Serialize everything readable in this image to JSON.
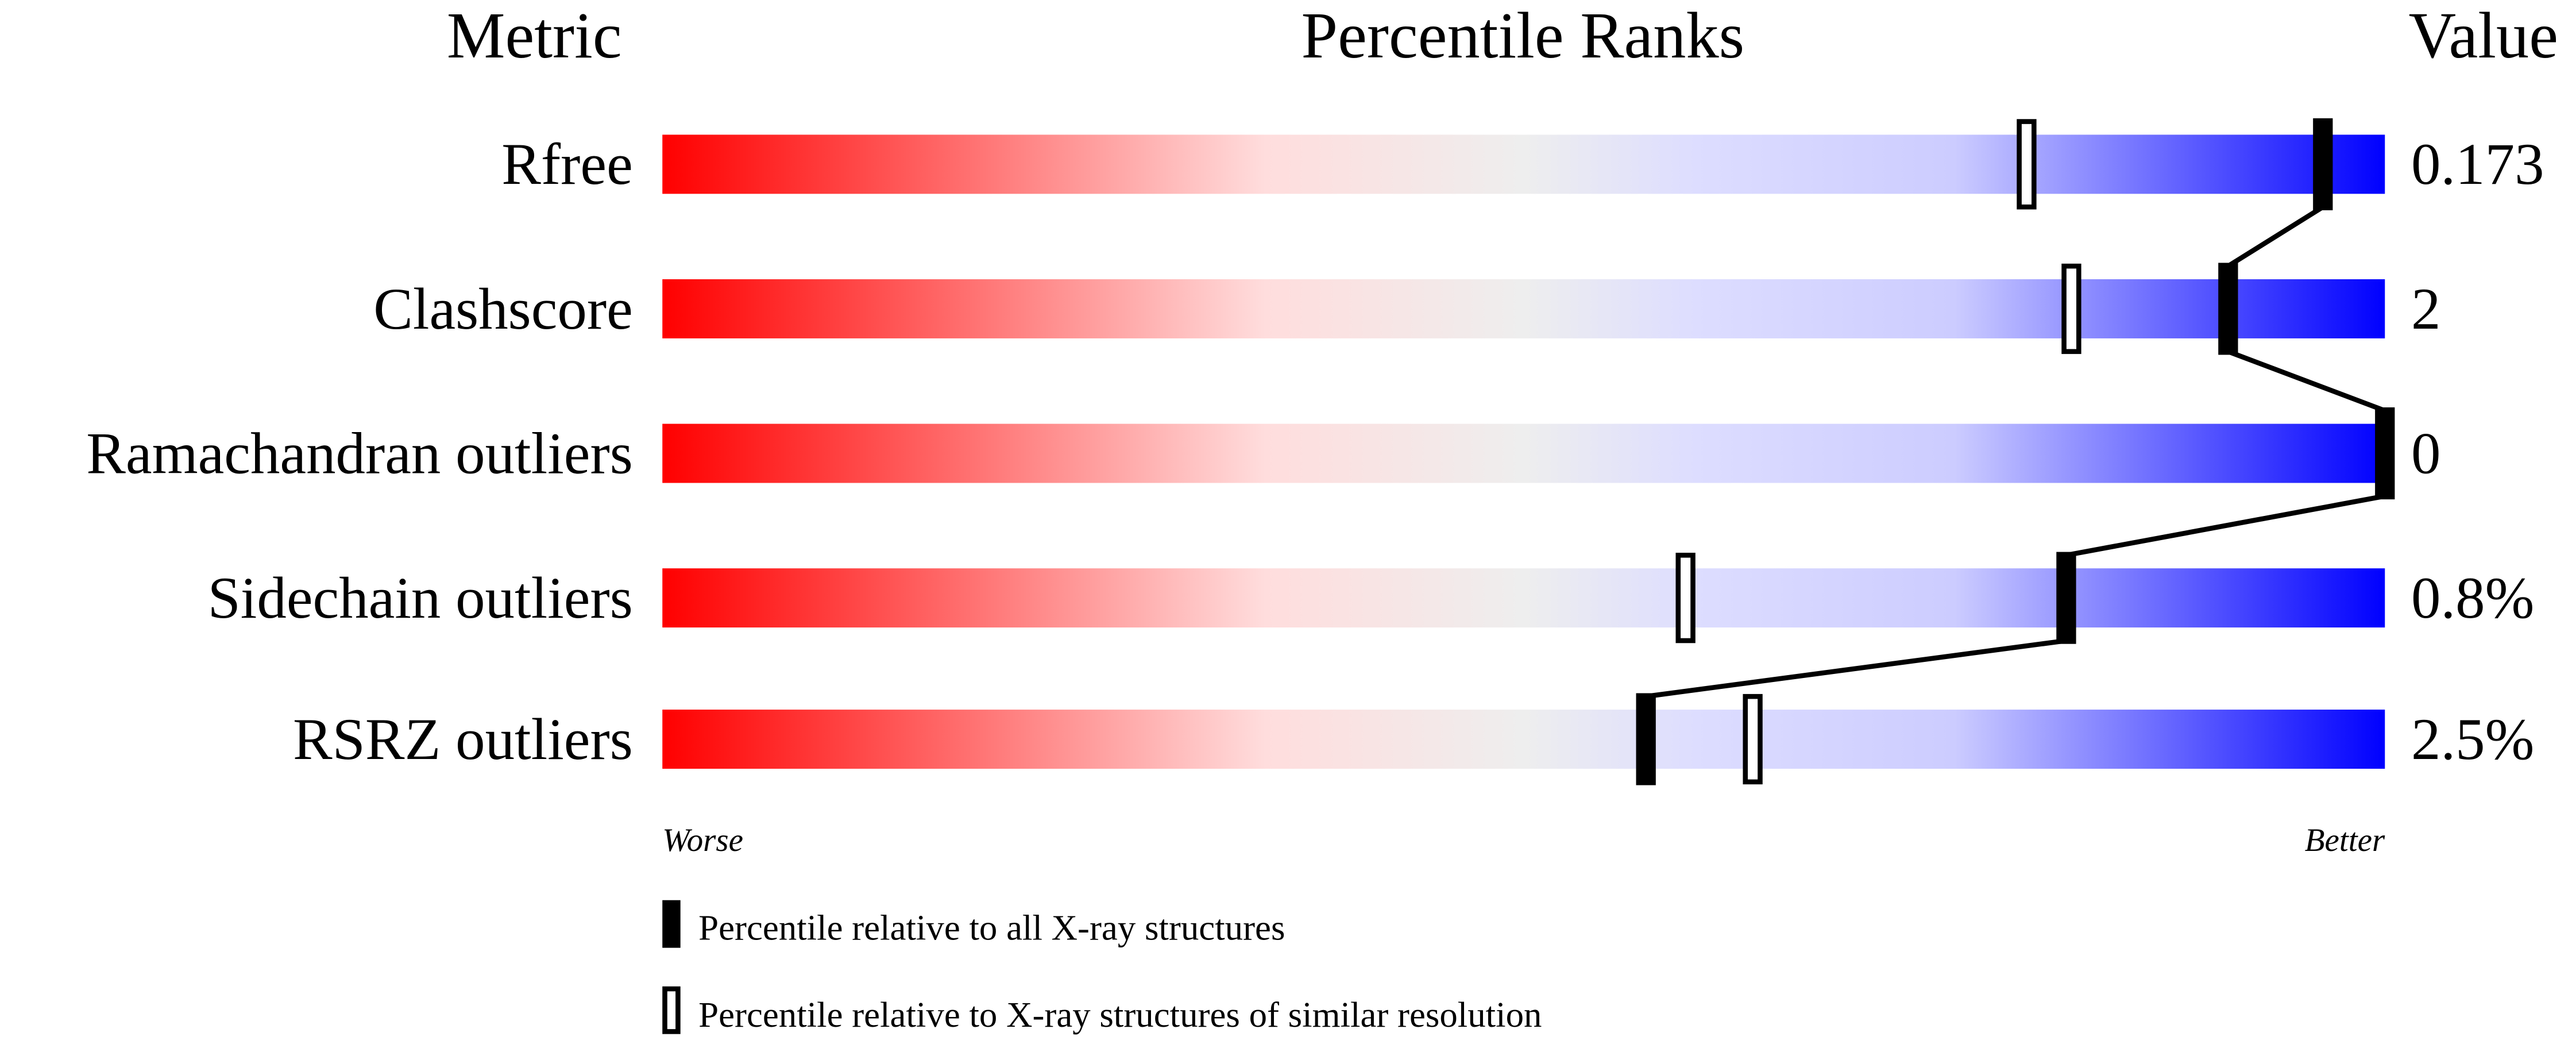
{
  "chart_data": {
    "type": "bar",
    "headers": {
      "metric": "Metric",
      "percentile": "Percentile Ranks",
      "value": "Value"
    },
    "xlim": [
      0,
      100
    ],
    "categories": [
      "Rfree",
      "Clashscore",
      "Ramachandran outliers",
      "Sidechain outliers",
      "RSRZ outliers"
    ],
    "values": [
      "0.173",
      "2",
      "0",
      "0.8%",
      "2.5%"
    ],
    "series": [
      {
        "name": "Percentile relative to all X-ray structures",
        "marker": "filled",
        "values": [
          96.4,
          90.9,
          100,
          81.5,
          57.1
        ]
      },
      {
        "name": "Percentile relative to X-ray structures of similar resolution",
        "marker": "open",
        "values": [
          79.2,
          81.8,
          null,
          59.4,
          63.3
        ]
      }
    ],
    "axis_labels": {
      "left": "Worse",
      "right": "Better"
    },
    "gradient_colors": [
      "#ff0000",
      "#ffdddd",
      "#eeeeee",
      "#ddddff",
      "#ccccff",
      "#0000ff"
    ],
    "legend_placement": "bottom"
  }
}
